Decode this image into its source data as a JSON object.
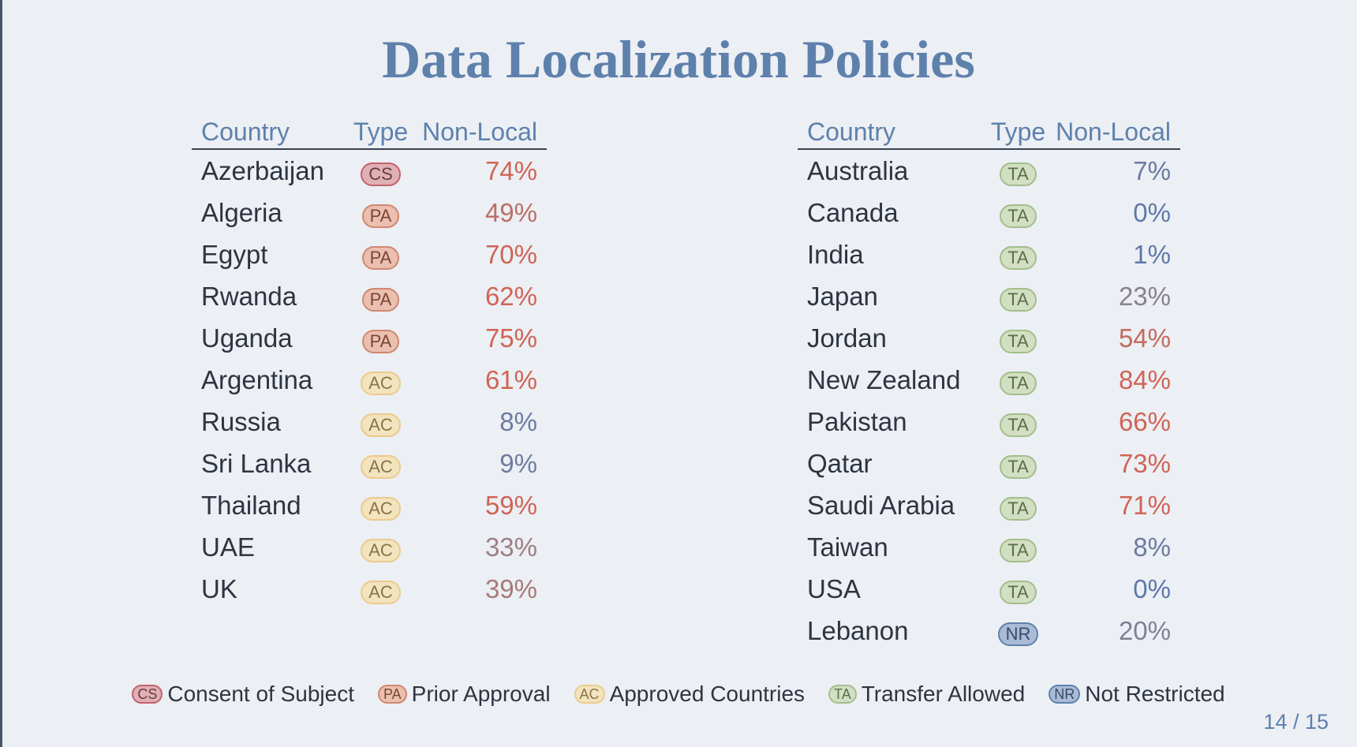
{
  "title": "Data Localization Policies",
  "headers": {
    "country": "Country",
    "type": "Type",
    "nonlocal": "Non-Local"
  },
  "types": {
    "CS": {
      "label": "Consent of Subject",
      "bg": "#dfb0b5",
      "border": "#c5606c",
      "text": "#6b3a40"
    },
    "PA": {
      "label": "Prior Approval",
      "bg": "#ebbfaf",
      "border": "#d08770",
      "text": "#7a4535"
    },
    "AC": {
      "label": "Approved Countries",
      "bg": "#f3e3bf",
      "border": "#ebcb8b",
      "text": "#8a7448"
    },
    "TA": {
      "label": "Transfer Allowed",
      "bg": "#d2dfc2",
      "border": "#a3be8c",
      "text": "#5b6e4b"
    },
    "NR": {
      "label": "Not Restricted",
      "bg": "#a9bbd6",
      "border": "#5e81ac",
      "text": "#344a69"
    }
  },
  "left_table": [
    {
      "country": "Azerbaijan",
      "type": "CS",
      "nonlocal": "74%",
      "value": 74
    },
    {
      "country": "Algeria",
      "type": "PA",
      "nonlocal": "49%",
      "value": 49
    },
    {
      "country": "Egypt",
      "type": "PA",
      "nonlocal": "70%",
      "value": 70
    },
    {
      "country": "Rwanda",
      "type": "PA",
      "nonlocal": "62%",
      "value": 62
    },
    {
      "country": "Uganda",
      "type": "PA",
      "nonlocal": "75%",
      "value": 75
    },
    {
      "country": "Argentina",
      "type": "AC",
      "nonlocal": "61%",
      "value": 61
    },
    {
      "country": "Russia",
      "type": "AC",
      "nonlocal": "8%",
      "value": 8
    },
    {
      "country": "Sri Lanka",
      "type": "AC",
      "nonlocal": "9%",
      "value": 9
    },
    {
      "country": "Thailand",
      "type": "AC",
      "nonlocal": "59%",
      "value": 59
    },
    {
      "country": "UAE",
      "type": "AC",
      "nonlocal": "33%",
      "value": 33
    },
    {
      "country": "UK",
      "type": "AC",
      "nonlocal": "39%",
      "value": 39
    }
  ],
  "right_table": [
    {
      "country": "Australia",
      "type": "TA",
      "nonlocal": "7%",
      "value": 7
    },
    {
      "country": "Canada",
      "type": "TA",
      "nonlocal": "0%",
      "value": 0
    },
    {
      "country": "India",
      "type": "TA",
      "nonlocal": "1%",
      "value": 1
    },
    {
      "country": "Japan",
      "type": "TA",
      "nonlocal": "23%",
      "value": 23
    },
    {
      "country": "Jordan",
      "type": "TA",
      "nonlocal": "54%",
      "value": 54
    },
    {
      "country": "New Zealand",
      "type": "TA",
      "nonlocal": "84%",
      "value": 84
    },
    {
      "country": "Pakistan",
      "type": "TA",
      "nonlocal": "66%",
      "value": 66
    },
    {
      "country": "Qatar",
      "type": "TA",
      "nonlocal": "73%",
      "value": 73
    },
    {
      "country": "Saudi Arabia",
      "type": "TA",
      "nonlocal": "71%",
      "value": 71
    },
    {
      "country": "Taiwan",
      "type": "TA",
      "nonlocal": "8%",
      "value": 8
    },
    {
      "country": "USA",
      "type": "TA",
      "nonlocal": "0%",
      "value": 0
    },
    {
      "country": "Lebanon",
      "type": "NR",
      "nonlocal": "20%",
      "value": 20
    }
  ],
  "legend_order": [
    "CS",
    "PA",
    "AC",
    "TA",
    "NR"
  ],
  "page": "14 / 15"
}
